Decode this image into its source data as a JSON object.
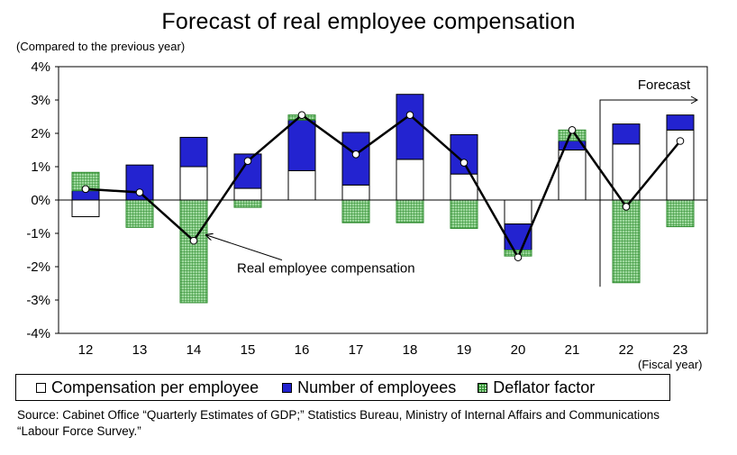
{
  "chart_data": {
    "type": "bar",
    "title": "Forecast of real employee compensation",
    "ylabel": "(Compared to the previous year)",
    "xlabel": "(Fiscal year)",
    "ylim": [
      -4,
      4
    ],
    "y_ticks": [
      "4%",
      "3%",
      "2%",
      "1%",
      "0%",
      "-1%",
      "-2%",
      "-3%",
      "-4%"
    ],
    "categories": [
      "12",
      "13",
      "14",
      "15",
      "16",
      "17",
      "18",
      "19",
      "20",
      "21",
      "22",
      "23"
    ],
    "series": [
      {
        "name": "Compensation per employee",
        "type": "stacked-bar",
        "values": [
          -0.5,
          0.0,
          1.0,
          0.35,
          0.88,
          0.45,
          1.22,
          0.78,
          -0.72,
          1.5,
          1.68,
          2.1
        ]
      },
      {
        "name": "Number of employees",
        "type": "stacked-bar",
        "values": [
          0.28,
          1.05,
          0.88,
          1.03,
          1.52,
          1.58,
          1.95,
          1.18,
          -0.78,
          0.28,
          0.6,
          0.45
        ]
      },
      {
        "name": "Deflator factor",
        "type": "stacked-bar",
        "values": [
          0.55,
          -0.82,
          -3.08,
          -0.22,
          0.15,
          -0.68,
          -0.68,
          -0.85,
          -0.18,
          0.32,
          -2.48,
          -0.8
        ]
      },
      {
        "name": "Real employee compensation",
        "type": "line",
        "values": [
          0.33,
          0.23,
          -1.22,
          1.17,
          2.55,
          1.37,
          2.55,
          1.12,
          -1.72,
          2.1,
          -0.2,
          1.77
        ]
      }
    ],
    "annotations": {
      "forecast_label": "Forecast",
      "line_label": "Real employee compensation",
      "forecast_start_category": "22"
    },
    "colors": {
      "compensation": "#ffffff",
      "employees": "#2323d0",
      "deflator_fill": "#9ed89e",
      "deflator_grid": "#2b8a2b",
      "line": "#000000"
    },
    "legend": [
      "Compensation per employee",
      "Number of employees",
      "Deflator factor"
    ],
    "legend_position": "bottom"
  },
  "source": "Source: Cabinet Office “Quarterly Estimates of GDP;” Statistics Bureau, Ministry of Internal Affairs and Communications “Labour Force Survey.”"
}
